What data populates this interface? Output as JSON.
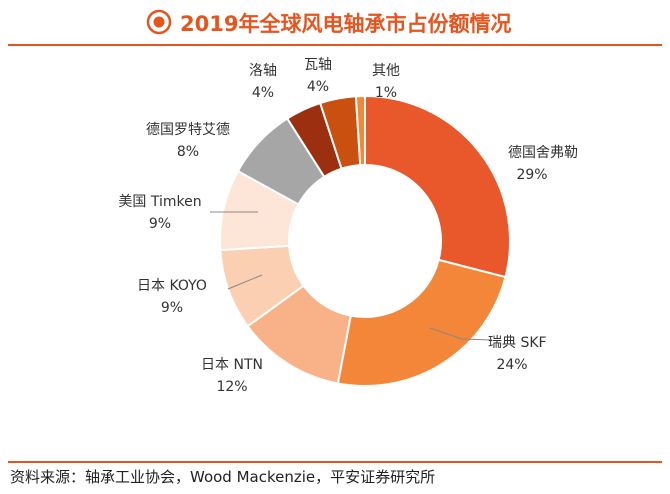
{
  "title": "2019年全球风电轴承市占份额情况",
  "source": "资料来源：轴承工业协会，Wood Mackenzie，平安证券研究所",
  "colors": {
    "accent": "#e8541e"
  },
  "chart_data": {
    "type": "donut",
    "title": "2019年全球风电轴承市占份额情况",
    "unit": "%",
    "slices": [
      {
        "name": "德国舍弗勒",
        "value": 29,
        "label": "29%",
        "color": "#e8582a"
      },
      {
        "name": "瑞典 SKF",
        "value": 24,
        "label": "24%",
        "color": "#f4863a"
      },
      {
        "name": "日本 NTN",
        "value": 12,
        "label": "12%",
        "color": "#f9b287"
      },
      {
        "name": "日本 KOYO",
        "value": 9,
        "label": "9%",
        "color": "#fbcfb2"
      },
      {
        "name": "美国 Timken",
        "value": 9,
        "label": "9%",
        "color": "#fde5d8"
      },
      {
        "name": "德国罗特艾德",
        "value": 8,
        "label": "8%",
        "color": "#a6a6a6"
      },
      {
        "name": "洛轴",
        "value": 4,
        "label": "4%",
        "color": "#9c2f10"
      },
      {
        "name": "瓦轴",
        "value": 4,
        "label": "4%",
        "color": "#c9500f"
      },
      {
        "name": "其他",
        "value": 1,
        "label": "1%",
        "color": "#f08a3a"
      }
    ]
  }
}
